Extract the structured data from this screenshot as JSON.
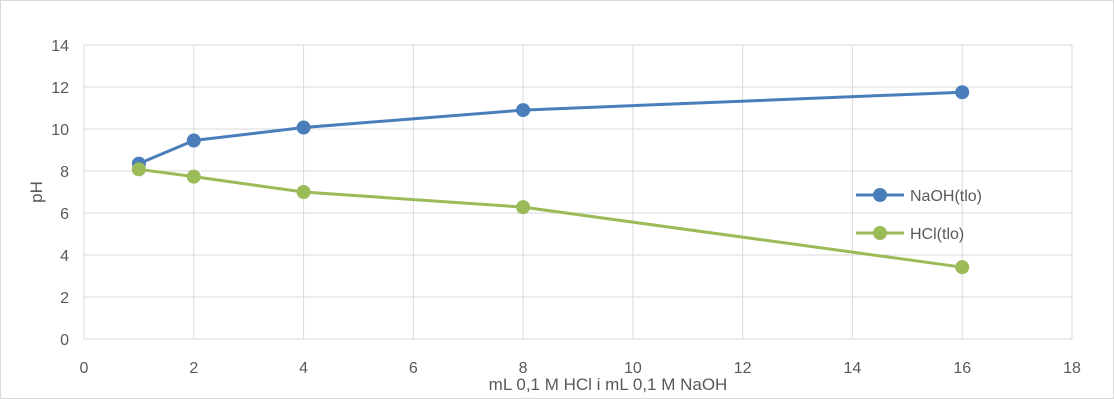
{
  "chart_data": {
    "type": "line",
    "title": "",
    "xlabel": "mL 0,1 M HCl i mL 0,1 M NaOH",
    "ylabel": "pH",
    "xlim": [
      0,
      18
    ],
    "ylim": [
      0,
      14
    ],
    "x_ticks": [
      "0",
      "2",
      "4",
      "6",
      "8",
      "10",
      "12",
      "14",
      "16",
      "18"
    ],
    "y_ticks": [
      "0",
      "2",
      "4",
      "6",
      "8",
      "10",
      "12",
      "14"
    ],
    "grid": true,
    "legend_position": "right",
    "series": [
      {
        "name": "NaOH(tlo)",
        "color": "#4a7ebb",
        "x": [
          1,
          2,
          4,
          8,
          16
        ],
        "y": [
          8.35,
          9.45,
          10.07,
          10.9,
          11.75
        ]
      },
      {
        "name": "HCl(tlo)",
        "color": "#9bbb59",
        "x": [
          1,
          2,
          4,
          8,
          16
        ],
        "y": [
          8.08,
          7.73,
          7.0,
          6.28,
          3.42
        ]
      }
    ]
  }
}
